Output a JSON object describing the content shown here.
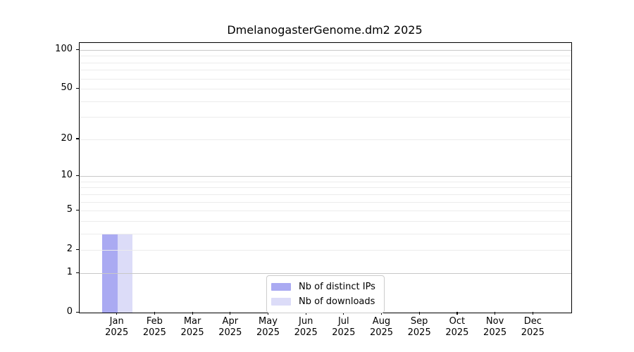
{
  "title": "DmelanogasterGenome.dm2 2025",
  "chart_data": {
    "type": "bar",
    "title": "DmelanogasterGenome.dm2 2025",
    "categories": [
      "Jan 2025",
      "Feb 2025",
      "Mar 2025",
      "Apr 2025",
      "May 2025",
      "Jun 2025",
      "Jul 2025",
      "Aug 2025",
      "Sep 2025",
      "Oct 2025",
      "Nov 2025",
      "Dec 2025"
    ],
    "series": [
      {
        "name": "Nb of distinct IPs",
        "color": "#aaaaf2",
        "values": [
          3,
          0,
          0,
          0,
          0,
          0,
          0,
          0,
          0,
          0,
          0,
          0
        ]
      },
      {
        "name": "Nb of downloads",
        "color": "#dcdcf8",
        "values": [
          3,
          0,
          0,
          0,
          0,
          0,
          0,
          0,
          0,
          0,
          0,
          0
        ]
      }
    ],
    "xlabel": "",
    "ylabel": "",
    "yscale": "log1p",
    "ylim": [
      0,
      114
    ],
    "y_ticks": [
      {
        "value": 100,
        "label": "100"
      },
      {
        "value": 50,
        "label": "50"
      },
      {
        "value": 20,
        "label": "20"
      },
      {
        "value": 10,
        "label": "10"
      },
      {
        "value": 5,
        "label": "5"
      },
      {
        "value": 2,
        "label": "2"
      },
      {
        "value": 1,
        "label": "1"
      },
      {
        "value": 0,
        "label": "0"
      }
    ],
    "y_gridlines_major": [
      1,
      10,
      100
    ],
    "y_gridlines_minor": [
      2,
      3,
      4,
      5,
      6,
      7,
      8,
      9,
      20,
      30,
      40,
      50,
      60,
      70,
      80,
      90
    ],
    "grid": true,
    "grid_above_bars": true,
    "legend_position": "bottom-center"
  },
  "colors": {
    "background": "#ffffff",
    "axis": "#000000",
    "major_grid": "#c8c8c8",
    "minor_grid": "#ececec",
    "legend_border": "#cccccc",
    "bar_distinct_ips": "#aaaaf2",
    "bar_downloads": "#dcdcf8"
  }
}
